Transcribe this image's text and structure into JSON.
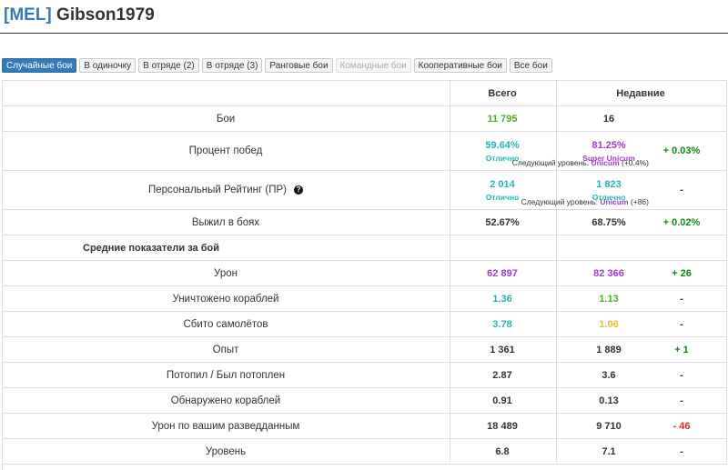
{
  "header": {
    "clan": "[MEL]",
    "player": "Gibson1979"
  },
  "tabs": [
    {
      "label": "Случайные бои",
      "state": "active"
    },
    {
      "label": "В одиночку",
      "state": "normal"
    },
    {
      "label": "В отряде (2)",
      "state": "normal"
    },
    {
      "label": "В отряде (3)",
      "state": "normal"
    },
    {
      "label": "Ранговые бои",
      "state": "normal"
    },
    {
      "label": "Командные бои",
      "state": "disabled"
    },
    {
      "label": "Кооперативные бои",
      "state": "normal"
    },
    {
      "label": "Все бои",
      "state": "normal"
    }
  ],
  "table": {
    "headers": {
      "total": "Всего",
      "recent": "Недавние"
    },
    "section_label": "Средние показатели за бой",
    "rows": {
      "battles": {
        "label": "Бои",
        "total": "11 795",
        "recent": "16",
        "diff": ""
      },
      "winrate": {
        "label": "Процент побед",
        "total": "59.64%",
        "total_rating": "Отлично",
        "recent": "81.25%",
        "recent_rating": "Super Unicum",
        "diff": "+ 0.03%",
        "next_prefix": "Следующий уровень:",
        "next_level": "Unicum",
        "next_delta": "(+0.4%)"
      },
      "pr": {
        "label": "Персональный Рейтинг (ПР)",
        "help_glyph": "?",
        "total": "2 014",
        "total_rating": "Отлично",
        "recent": "1 823",
        "recent_rating": "Отлично",
        "diff": "-",
        "next_prefix": "Следующий уровень:",
        "next_level": "Unicum",
        "next_delta": "(+86)"
      },
      "survived": {
        "label": "Выжил в боях",
        "total": "52.67%",
        "recent": "68.75%",
        "diff": "+ 0.02%"
      },
      "damage": {
        "label": "Урон",
        "total": "62 897",
        "recent": "82 366",
        "diff": "+ 26"
      },
      "kills": {
        "label": "Уничтожено кораблей",
        "total": "1.36",
        "recent": "1.13",
        "diff": "-"
      },
      "planes": {
        "label": "Сбито самолётов",
        "total": "3.78",
        "recent": "1.06",
        "diff": "-"
      },
      "xp": {
        "label": "Опыт",
        "total": "1 361",
        "recent": "1 889",
        "diff": "+ 1"
      },
      "kd": {
        "label": "Потопил / Был потоплен",
        "total": "2.87",
        "recent": "3.6",
        "diff": "-"
      },
      "spotted": {
        "label": "Обнаружено кораблей",
        "total": "0.91",
        "recent": "0.13",
        "diff": "-"
      },
      "spot_damage": {
        "label": "Урон по вашим разведданным",
        "total": "18 489",
        "recent": "9 710",
        "diff": "- 46"
      },
      "tier": {
        "label": "Уровень",
        "total": "6.8",
        "recent": "7.1",
        "diff": "-"
      }
    }
  },
  "colors": {
    "accent_blue": "#337ab7",
    "good_green": "#4caf23",
    "great_cyan": "#21b5b5",
    "unicum_purple": "#a03dc4",
    "average_yellow": "#f0ba2e",
    "diff_positive": "#128a12",
    "diff_negative": "#e02626"
  }
}
